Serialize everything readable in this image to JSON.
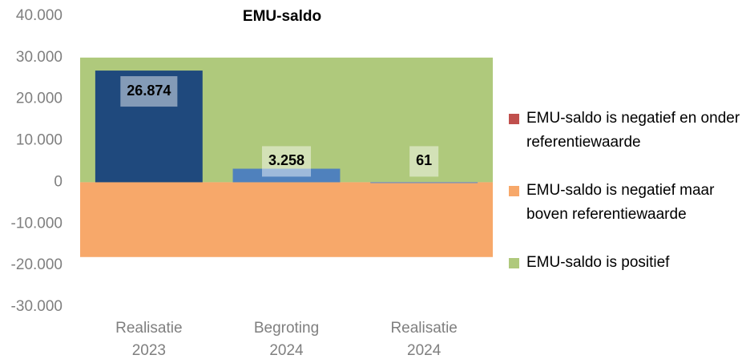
{
  "chart_data": {
    "type": "bar",
    "title": "EMU-saldo",
    "categories": [
      "Realisatie 2023",
      "Begroting 2024",
      "Realisatie 2024"
    ],
    "values": [
      26874,
      3258,
      61
    ],
    "value_labels": [
      "26.874",
      "3.258",
      "61"
    ],
    "colors": [
      "#1f497d",
      "#4f81bd",
      "#8497b0"
    ],
    "bands": [
      {
        "name": "EMU-saldo is negatief en onder referentiewaarde",
        "color": "#c0504d",
        "value": 0
      },
      {
        "name": "EMU-saldo is negatief maar boven referentiewaarde",
        "color": "#f7a86a",
        "value": -18000
      },
      {
        "name": "EMU-saldo is positief",
        "color": "#afc97c",
        "value": 30000
      }
    ],
    "ylim": [
      -30000,
      40000
    ],
    "yticks": [
      {
        "value": -30000,
        "label": "-30.000"
      },
      {
        "value": -20000,
        "label": "-20.000"
      },
      {
        "value": -10000,
        "label": "-10.000"
      },
      0,
      {
        "value": 10000,
        "label": "10.000"
      },
      {
        "value": 20000,
        "label": "20.000"
      },
      {
        "value": 30000,
        "label": "30.000"
      },
      {
        "value": 40000,
        "label": "40.000"
      }
    ],
    "grid": false,
    "legend": "right"
  }
}
